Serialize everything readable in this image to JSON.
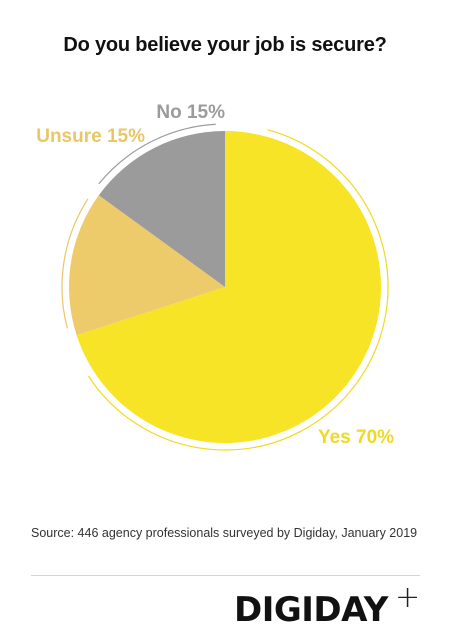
{
  "chart_data": {
    "type": "pie",
    "title": "Do you believe your job is secure?",
    "slices": [
      {
        "label": "Yes 70%",
        "category": "Yes",
        "value": 70,
        "color": "#f7e427"
      },
      {
        "label": "Unsure 15%",
        "category": "Unsure",
        "value": 15,
        "color": "#eecb6a"
      },
      {
        "label": "No 15%",
        "category": "No",
        "value": 15,
        "color": "#9b9b9b"
      }
    ],
    "label_colors": {
      "Yes": "#f0da20",
      "Unsure": "#e9c766",
      "No": "#9b9b9b"
    },
    "start_angle_deg": 0,
    "direction": "clockwise from top"
  },
  "source": "Source: 446 agency professionals surveyed by Digiday,  January 2019",
  "brand": {
    "name": "DIGIDAY",
    "plus": "+"
  }
}
